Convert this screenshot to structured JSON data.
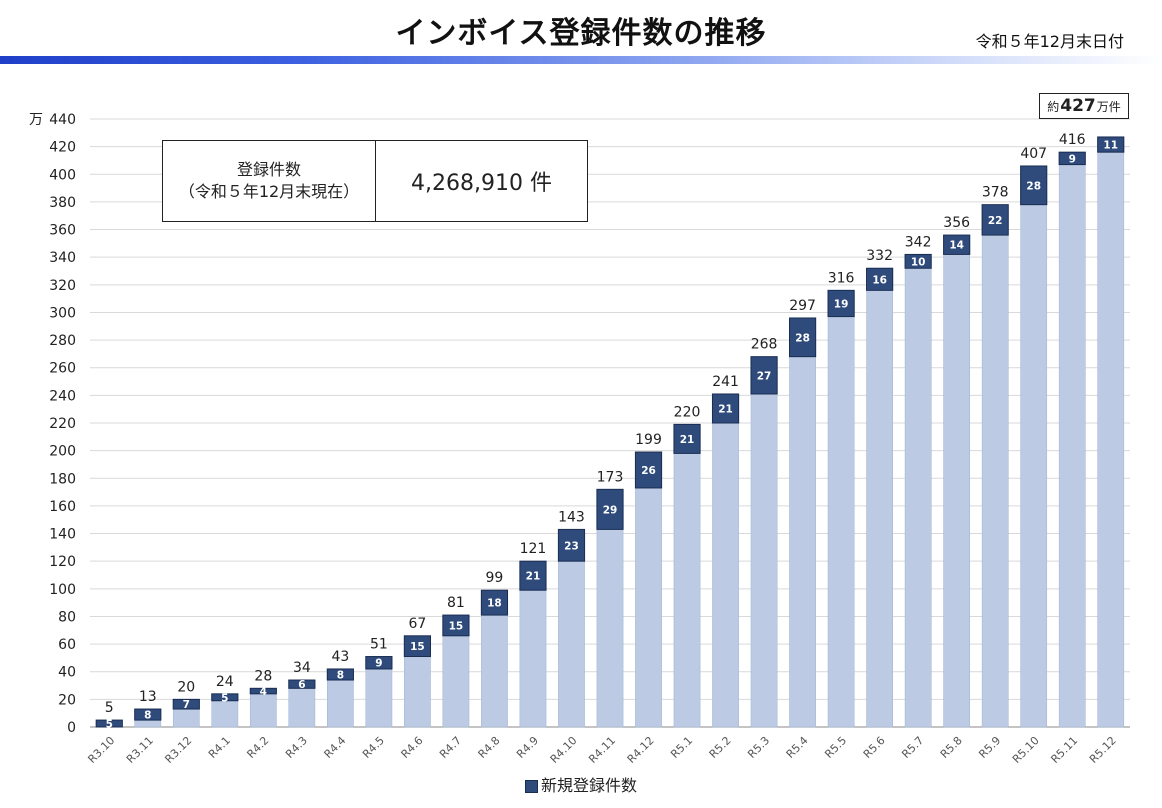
{
  "header": {
    "title": "インボイス登録件数の推移",
    "date": "令和５年12月末日付"
  },
  "summary_box": {
    "label_line1": "登録件数",
    "label_line2": "（令和５年12月末現在）",
    "value": "4,268,910 件"
  },
  "total_callout": {
    "prefix": "約",
    "number": "427",
    "suffix": "万件"
  },
  "colors": {
    "header_bar_start": "#1f3fc8",
    "cumulative_fill": "#bccbe3",
    "new_fill": "#2f4b7c",
    "new_stroke": "#1a2d52",
    "grid": "#d9d9d9"
  },
  "chart_data": {
    "type": "bar",
    "stacked": true,
    "y_unit_label": "万",
    "ylim": [
      0,
      440
    ],
    "y_ticks": [
      0,
      20,
      40,
      60,
      80,
      100,
      120,
      140,
      160,
      180,
      200,
      220,
      240,
      260,
      280,
      300,
      320,
      340,
      360,
      380,
      400,
      420,
      440
    ],
    "grid": true,
    "legend_position": "bottom",
    "categories": [
      "R3.10",
      "R3.11",
      "R3.12",
      "R4.1",
      "R4.2",
      "R4.3",
      "R4.4",
      "R4.5",
      "R4.6",
      "R4.7",
      "R4.8",
      "R4.9",
      "R4.10",
      "R4.11",
      "R4.12",
      "R5.1",
      "R5.2",
      "R5.3",
      "R5.4",
      "R5.5",
      "R5.6",
      "R5.7",
      "R5.8",
      "R5.9",
      "R5.10",
      "R5.11",
      "R5.12"
    ],
    "totals": [
      5,
      13,
      20,
      24,
      28,
      34,
      43,
      51,
      67,
      81,
      99,
      121,
      143,
      173,
      199,
      220,
      241,
      268,
      297,
      316,
      332,
      342,
      356,
      378,
      407,
      416,
      null
    ],
    "new_registrations": [
      5,
      8,
      7,
      5,
      4,
      6,
      8,
      9,
      15,
      15,
      18,
      21,
      23,
      29,
      26,
      21,
      21,
      27,
      28,
      19,
      16,
      10,
      14,
      22,
      28,
      9,
      11
    ],
    "cumulative_values": [
      0,
      5,
      13,
      19,
      24,
      28,
      34,
      42,
      51,
      66,
      81,
      99,
      120,
      143,
      173,
      198,
      220,
      241,
      268,
      297,
      316,
      332,
      342,
      356,
      378,
      407,
      416
    ],
    "series": [
      {
        "name": "新規登録件数",
        "values": [
          5,
          8,
          7,
          5,
          4,
          6,
          8,
          9,
          15,
          15,
          18,
          21,
          23,
          29,
          26,
          21,
          21,
          27,
          28,
          19,
          16,
          10,
          14,
          22,
          28,
          9,
          11
        ]
      }
    ]
  }
}
